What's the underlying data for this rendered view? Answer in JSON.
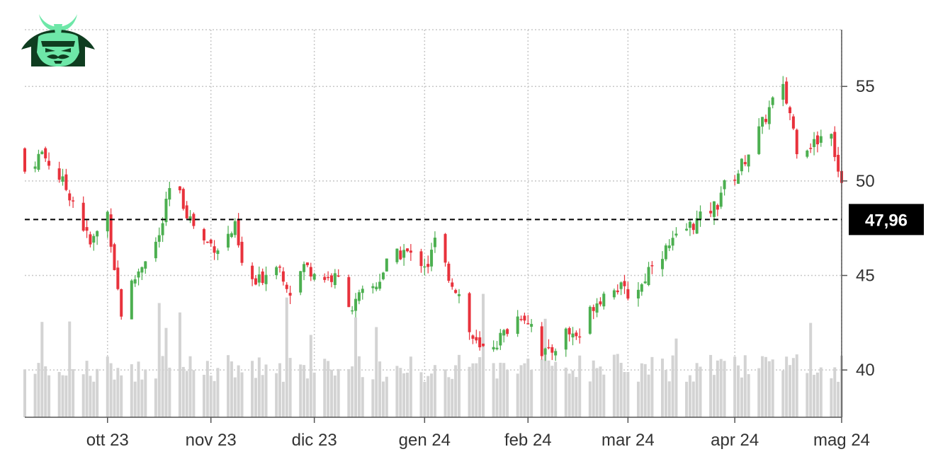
{
  "colors": {
    "up": "#4caf50",
    "down": "#e8323c",
    "volume": "#d3d3d3",
    "grid": "#c8c8c8",
    "reference": "#000000",
    "logo_green": "#6ee7a8",
    "logo_dark": "#0f3d20"
  },
  "logo": {
    "icon": "samurai-helmet-icon"
  },
  "chart_data": {
    "type": "candlestick",
    "y_ticks": [
      "40",
      "45",
      "50",
      "55"
    ],
    "y_range": [
      37.5,
      58
    ],
    "x_ticks": [
      {
        "label": "ott 23",
        "date": "2023-10-02"
      },
      {
        "label": "nov 23",
        "date": "2023-11-01"
      },
      {
        "label": "dic 23",
        "date": "2023-12-01"
      },
      {
        "label": "gen 24",
        "date": "2024-01-02"
      },
      {
        "label": "feb 24",
        "date": "2024-02-01"
      },
      {
        "label": "mar 24",
        "date": "2024-03-01"
      },
      {
        "label": "apr 24",
        "date": "2024-04-01"
      },
      {
        "label": "mag 24",
        "date": "2024-05-02"
      }
    ],
    "x_range": [
      "2023-09-08",
      "2024-05-02"
    ],
    "reference_line": {
      "value": 47.96,
      "label": "47,96",
      "style": "dashed"
    },
    "grid": true,
    "close_anchors": [
      [
        "2023-09-08",
        50.5
      ],
      [
        "2023-09-13",
        51.5
      ],
      [
        "2023-09-18",
        50.2
      ],
      [
        "2023-09-22",
        49.0
      ],
      [
        "2023-09-27",
        46.6
      ],
      [
        "2023-10-02",
        48.3
      ],
      [
        "2023-10-04",
        45.5
      ],
      [
        "2023-10-06",
        43.0
      ],
      [
        "2023-10-09",
        44.5
      ],
      [
        "2023-10-13",
        46.0
      ],
      [
        "2023-10-17",
        47.0
      ],
      [
        "2023-10-20",
        49.5
      ],
      [
        "2023-10-23",
        49.2
      ],
      [
        "2023-10-26",
        48.0
      ],
      [
        "2023-10-30",
        46.8
      ],
      [
        "2023-11-03",
        46.5
      ],
      [
        "2023-11-08",
        47.5
      ],
      [
        "2023-11-10",
        45.5
      ],
      [
        "2023-11-14",
        44.5
      ],
      [
        "2023-11-20",
        45.8
      ],
      [
        "2023-11-24",
        44.2
      ],
      [
        "2023-11-28",
        45.5
      ],
      [
        "2023-12-04",
        44.9
      ],
      [
        "2023-12-08",
        44.8
      ],
      [
        "2023-12-12",
        43.3
      ],
      [
        "2023-12-15",
        44.0
      ],
      [
        "2023-12-19",
        44.5
      ],
      [
        "2023-12-22",
        45.6
      ],
      [
        "2023-12-27",
        46.3
      ],
      [
        "2023-12-29",
        46.0
      ],
      [
        "2024-01-03",
        45.6
      ],
      [
        "2024-01-05",
        46.8
      ],
      [
        "2024-01-09",
        45.0
      ],
      [
        "2024-01-12",
        44.0
      ],
      [
        "2024-01-15",
        42.0
      ],
      [
        "2024-01-18",
        41.0
      ],
      [
        "2024-01-23",
        41.5
      ],
      [
        "2024-01-30",
        43.0
      ],
      [
        "2024-02-02",
        42.5
      ],
      [
        "2024-02-05",
        41.0
      ],
      [
        "2024-02-07",
        40.8
      ],
      [
        "2024-02-12",
        42.0
      ],
      [
        "2024-02-16",
        41.8
      ],
      [
        "2024-02-20",
        43.5
      ],
      [
        "2024-02-26",
        44.5
      ],
      [
        "2024-03-01",
        44.0
      ],
      [
        "2024-03-05",
        44.5
      ],
      [
        "2024-03-08",
        45.8
      ],
      [
        "2024-03-13",
        46.5
      ],
      [
        "2024-03-18",
        47.5
      ],
      [
        "2024-03-22",
        48.0
      ],
      [
        "2024-03-27",
        48.8
      ],
      [
        "2024-03-28",
        49.5
      ],
      [
        "2024-04-02",
        50.5
      ],
      [
        "2024-04-04",
        51.2
      ],
      [
        "2024-04-09",
        53.0
      ],
      [
        "2024-04-12",
        54.2
      ],
      [
        "2024-04-15",
        54.8
      ],
      [
        "2024-04-17",
        53.6
      ],
      [
        "2024-04-19",
        51.8
      ],
      [
        "2024-04-24",
        52.0
      ],
      [
        "2024-04-29",
        52.8
      ],
      [
        "2024-04-30",
        51.5
      ],
      [
        "2024-05-02",
        50.0
      ]
    ]
  }
}
